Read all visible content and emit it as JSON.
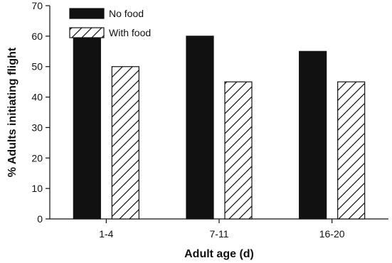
{
  "chart_data": {
    "type": "bar",
    "title": "",
    "xlabel": "Adult age (d)",
    "ylabel": "% Adults initiating flight",
    "categories": [
      "1-4",
      "7-11",
      "16-20"
    ],
    "series": [
      {
        "name": "No food",
        "values": [
          60,
          60,
          55
        ],
        "color": "#111111",
        "fill": "solid"
      },
      {
        "name": "With food",
        "values": [
          50,
          45,
          45
        ],
        "color": "#111111",
        "fill": "diagonal-hatch"
      }
    ],
    "ylim": [
      0,
      70
    ],
    "yticks": [
      0,
      10,
      20,
      30,
      40,
      50,
      60,
      70
    ],
    "grid": false,
    "legend_position": "top-left"
  }
}
